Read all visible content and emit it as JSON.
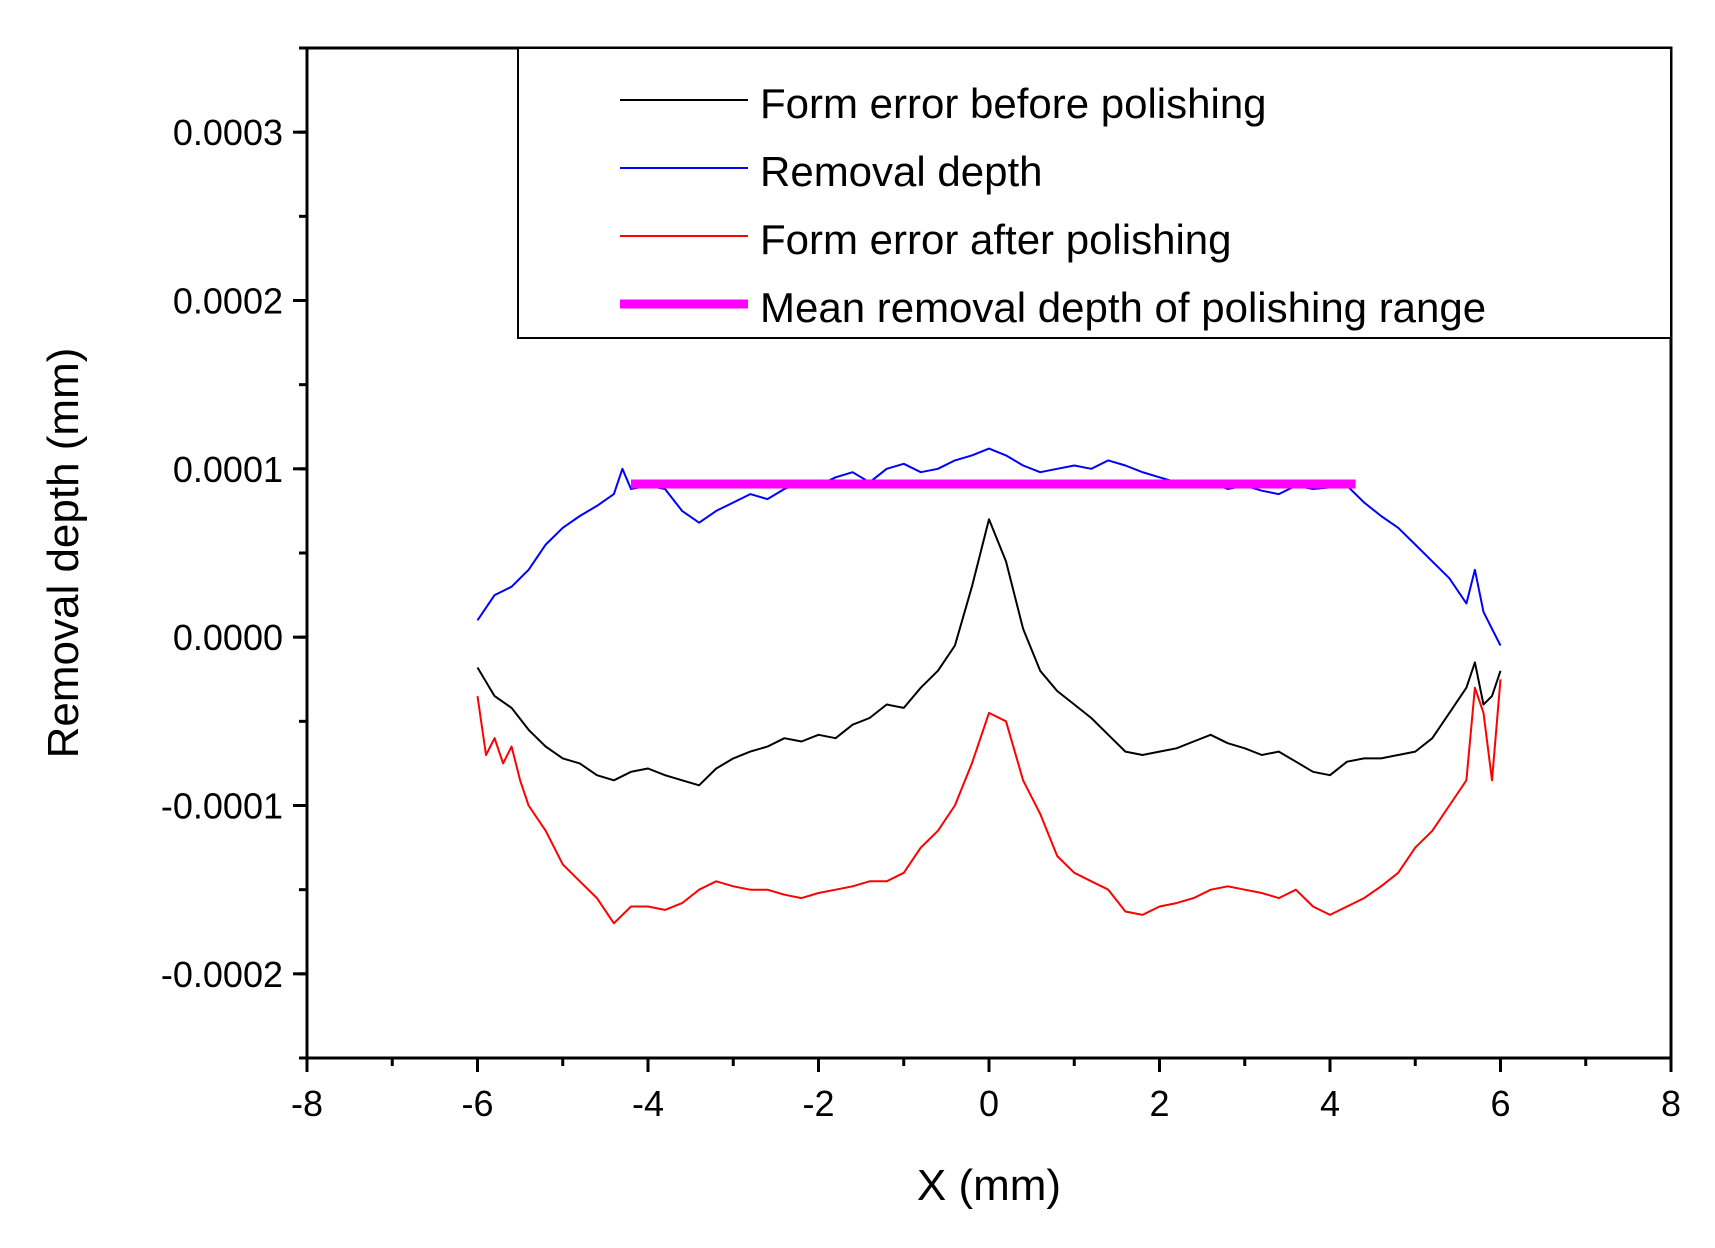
{
  "chart_data": {
    "type": "line",
    "title": "",
    "xlabel": "X (mm)",
    "ylabel": "Removal depth (mm)",
    "xlim": [
      -8,
      8
    ],
    "ylim": [
      -0.00025,
      0.00035
    ],
    "xticks": [
      -8,
      -6,
      -4,
      -2,
      0,
      2,
      4,
      6,
      8
    ],
    "xtick_labels": [
      "-8",
      "-6",
      "-4",
      "-2",
      "0",
      "2",
      "4",
      "6",
      "8"
    ],
    "yticks": [
      -0.0002,
      -0.0001,
      0.0,
      0.0001,
      0.0002,
      0.0003
    ],
    "ytick_labels": [
      "-0.0002",
      "-0.0001",
      "0.0000",
      "0.0001",
      "0.0002",
      "0.0003"
    ],
    "legend_position": "top-right",
    "series": [
      {
        "name": "Form error before polishing",
        "color": "#000000",
        "x": [
          -6.0,
          -5.8,
          -5.6,
          -5.4,
          -5.2,
          -5.0,
          -4.8,
          -4.6,
          -4.4,
          -4.2,
          -4.0,
          -3.8,
          -3.6,
          -3.4,
          -3.2,
          -3.0,
          -2.8,
          -2.6,
          -2.4,
          -2.2,
          -2.0,
          -1.8,
          -1.6,
          -1.4,
          -1.2,
          -1.0,
          -0.8,
          -0.6,
          -0.4,
          -0.2,
          0.0,
          0.2,
          0.4,
          0.6,
          0.8,
          1.0,
          1.2,
          1.4,
          1.6,
          1.8,
          2.0,
          2.2,
          2.4,
          2.6,
          2.8,
          3.0,
          3.2,
          3.4,
          3.6,
          3.8,
          4.0,
          4.2,
          4.4,
          4.6,
          4.8,
          5.0,
          5.2,
          5.4,
          5.6,
          5.7,
          5.8,
          5.9,
          6.0
        ],
        "y": [
          -1.8e-05,
          -3.5e-05,
          -4.2e-05,
          -5.5e-05,
          -6.5e-05,
          -7.2e-05,
          -7.5e-05,
          -8.2e-05,
          -8.5e-05,
          -8e-05,
          -7.8e-05,
          -8.2e-05,
          -8.5e-05,
          -8.8e-05,
          -7.8e-05,
          -7.2e-05,
          -6.8e-05,
          -6.5e-05,
          -6e-05,
          -6.2e-05,
          -5.8e-05,
          -6e-05,
          -5.2e-05,
          -4.8e-05,
          -4e-05,
          -4.2e-05,
          -3e-05,
          -2e-05,
          -5e-06,
          3e-05,
          7e-05,
          4.5e-05,
          5e-06,
          -2e-05,
          -3.2e-05,
          -4e-05,
          -4.8e-05,
          -5.8e-05,
          -6.8e-05,
          -7e-05,
          -6.8e-05,
          -6.6e-05,
          -6.2e-05,
          -5.8e-05,
          -6.3e-05,
          -6.6e-05,
          -7e-05,
          -6.8e-05,
          -7.4e-05,
          -8e-05,
          -8.2e-05,
          -7.4e-05,
          -7.2e-05,
          -7.2e-05,
          -7e-05,
          -6.8e-05,
          -6e-05,
          -4.5e-05,
          -3e-05,
          -1.5e-05,
          -4e-05,
          -3.5e-05,
          -2e-05
        ]
      },
      {
        "name": "Removal depth",
        "color": "#0000ff",
        "x": [
          -6.0,
          -5.8,
          -5.6,
          -5.4,
          -5.2,
          -5.0,
          -4.8,
          -4.6,
          -4.4,
          -4.3,
          -4.2,
          -4.0,
          -3.8,
          -3.6,
          -3.4,
          -3.2,
          -3.0,
          -2.8,
          -2.6,
          -2.4,
          -2.2,
          -2.0,
          -1.8,
          -1.6,
          -1.4,
          -1.2,
          -1.0,
          -0.8,
          -0.6,
          -0.4,
          -0.2,
          0.0,
          0.2,
          0.4,
          0.6,
          0.8,
          1.0,
          1.2,
          1.4,
          1.6,
          1.8,
          2.0,
          2.2,
          2.4,
          2.6,
          2.8,
          3.0,
          3.2,
          3.4,
          3.6,
          3.8,
          4.0,
          4.2,
          4.4,
          4.6,
          4.8,
          5.0,
          5.2,
          5.4,
          5.6,
          5.7,
          5.8,
          5.9,
          6.0
        ],
        "y": [
          1e-05,
          2.5e-05,
          3e-05,
          4e-05,
          5.5e-05,
          6.5e-05,
          7.2e-05,
          7.8e-05,
          8.5e-05,
          0.0001,
          8.8e-05,
          9e-05,
          8.8e-05,
          7.5e-05,
          6.8e-05,
          7.5e-05,
          8e-05,
          8.5e-05,
          8.2e-05,
          8.8e-05,
          9.2e-05,
          9e-05,
          9.5e-05,
          9.8e-05,
          9.2e-05,
          0.0001,
          0.000103,
          9.8e-05,
          0.0001,
          0.000105,
          0.000108,
          0.000112,
          0.000108,
          0.000102,
          9.8e-05,
          0.0001,
          0.000102,
          0.0001,
          0.000105,
          0.000102,
          9.8e-05,
          9.5e-05,
          9.2e-05,
          9e-05,
          9.2e-05,
          8.8e-05,
          9e-05,
          8.7e-05,
          8.5e-05,
          9e-05,
          8.8e-05,
          8.9e-05,
          9e-05,
          8e-05,
          7.2e-05,
          6.5e-05,
          5.5e-05,
          4.5e-05,
          3.5e-05,
          2e-05,
          4e-05,
          1.5e-05,
          5e-06,
          -5e-06
        ]
      },
      {
        "name": "Form error after polishing",
        "color": "#ff0000",
        "x": [
          -6.0,
          -5.9,
          -5.8,
          -5.7,
          -5.6,
          -5.5,
          -5.4,
          -5.2,
          -5.0,
          -4.8,
          -4.6,
          -4.4,
          -4.2,
          -4.0,
          -3.8,
          -3.6,
          -3.4,
          -3.2,
          -3.0,
          -2.8,
          -2.6,
          -2.4,
          -2.2,
          -2.0,
          -1.8,
          -1.6,
          -1.4,
          -1.2,
          -1.0,
          -0.8,
          -0.6,
          -0.4,
          -0.2,
          0.0,
          0.2,
          0.4,
          0.6,
          0.8,
          1.0,
          1.2,
          1.4,
          1.6,
          1.8,
          2.0,
          2.2,
          2.4,
          2.6,
          2.8,
          3.0,
          3.2,
          3.4,
          3.6,
          3.8,
          4.0,
          4.2,
          4.4,
          4.6,
          4.8,
          5.0,
          5.2,
          5.4,
          5.6,
          5.7,
          5.8,
          5.9,
          6.0
        ],
        "y": [
          -3.5e-05,
          -7e-05,
          -6e-05,
          -7.5e-05,
          -6.5e-05,
          -8.5e-05,
          -0.0001,
          -0.000115,
          -0.000135,
          -0.000145,
          -0.000155,
          -0.00017,
          -0.00016,
          -0.00016,
          -0.000162,
          -0.000158,
          -0.00015,
          -0.000145,
          -0.000148,
          -0.00015,
          -0.00015,
          -0.000153,
          -0.000155,
          -0.000152,
          -0.00015,
          -0.000148,
          -0.000145,
          -0.000145,
          -0.00014,
          -0.000125,
          -0.000115,
          -0.0001,
          -7.5e-05,
          -4.5e-05,
          -5e-05,
          -8.5e-05,
          -0.000105,
          -0.00013,
          -0.00014,
          -0.000145,
          -0.00015,
          -0.000163,
          -0.000165,
          -0.00016,
          -0.000158,
          -0.000155,
          -0.00015,
          -0.000148,
          -0.00015,
          -0.000152,
          -0.000155,
          -0.00015,
          -0.00016,
          -0.000165,
          -0.00016,
          -0.000155,
          -0.000148,
          -0.00014,
          -0.000125,
          -0.000115,
          -0.0001,
          -8.5e-05,
          -3e-05,
          -4.5e-05,
          -8.5e-05,
          -2.5e-05
        ]
      },
      {
        "name": "Mean removal depth of polishing range",
        "color": "#ff00ff",
        "x": [
          -4.2,
          4.3
        ],
        "y": [
          9.1e-05,
          9.1e-05
        ]
      }
    ]
  }
}
